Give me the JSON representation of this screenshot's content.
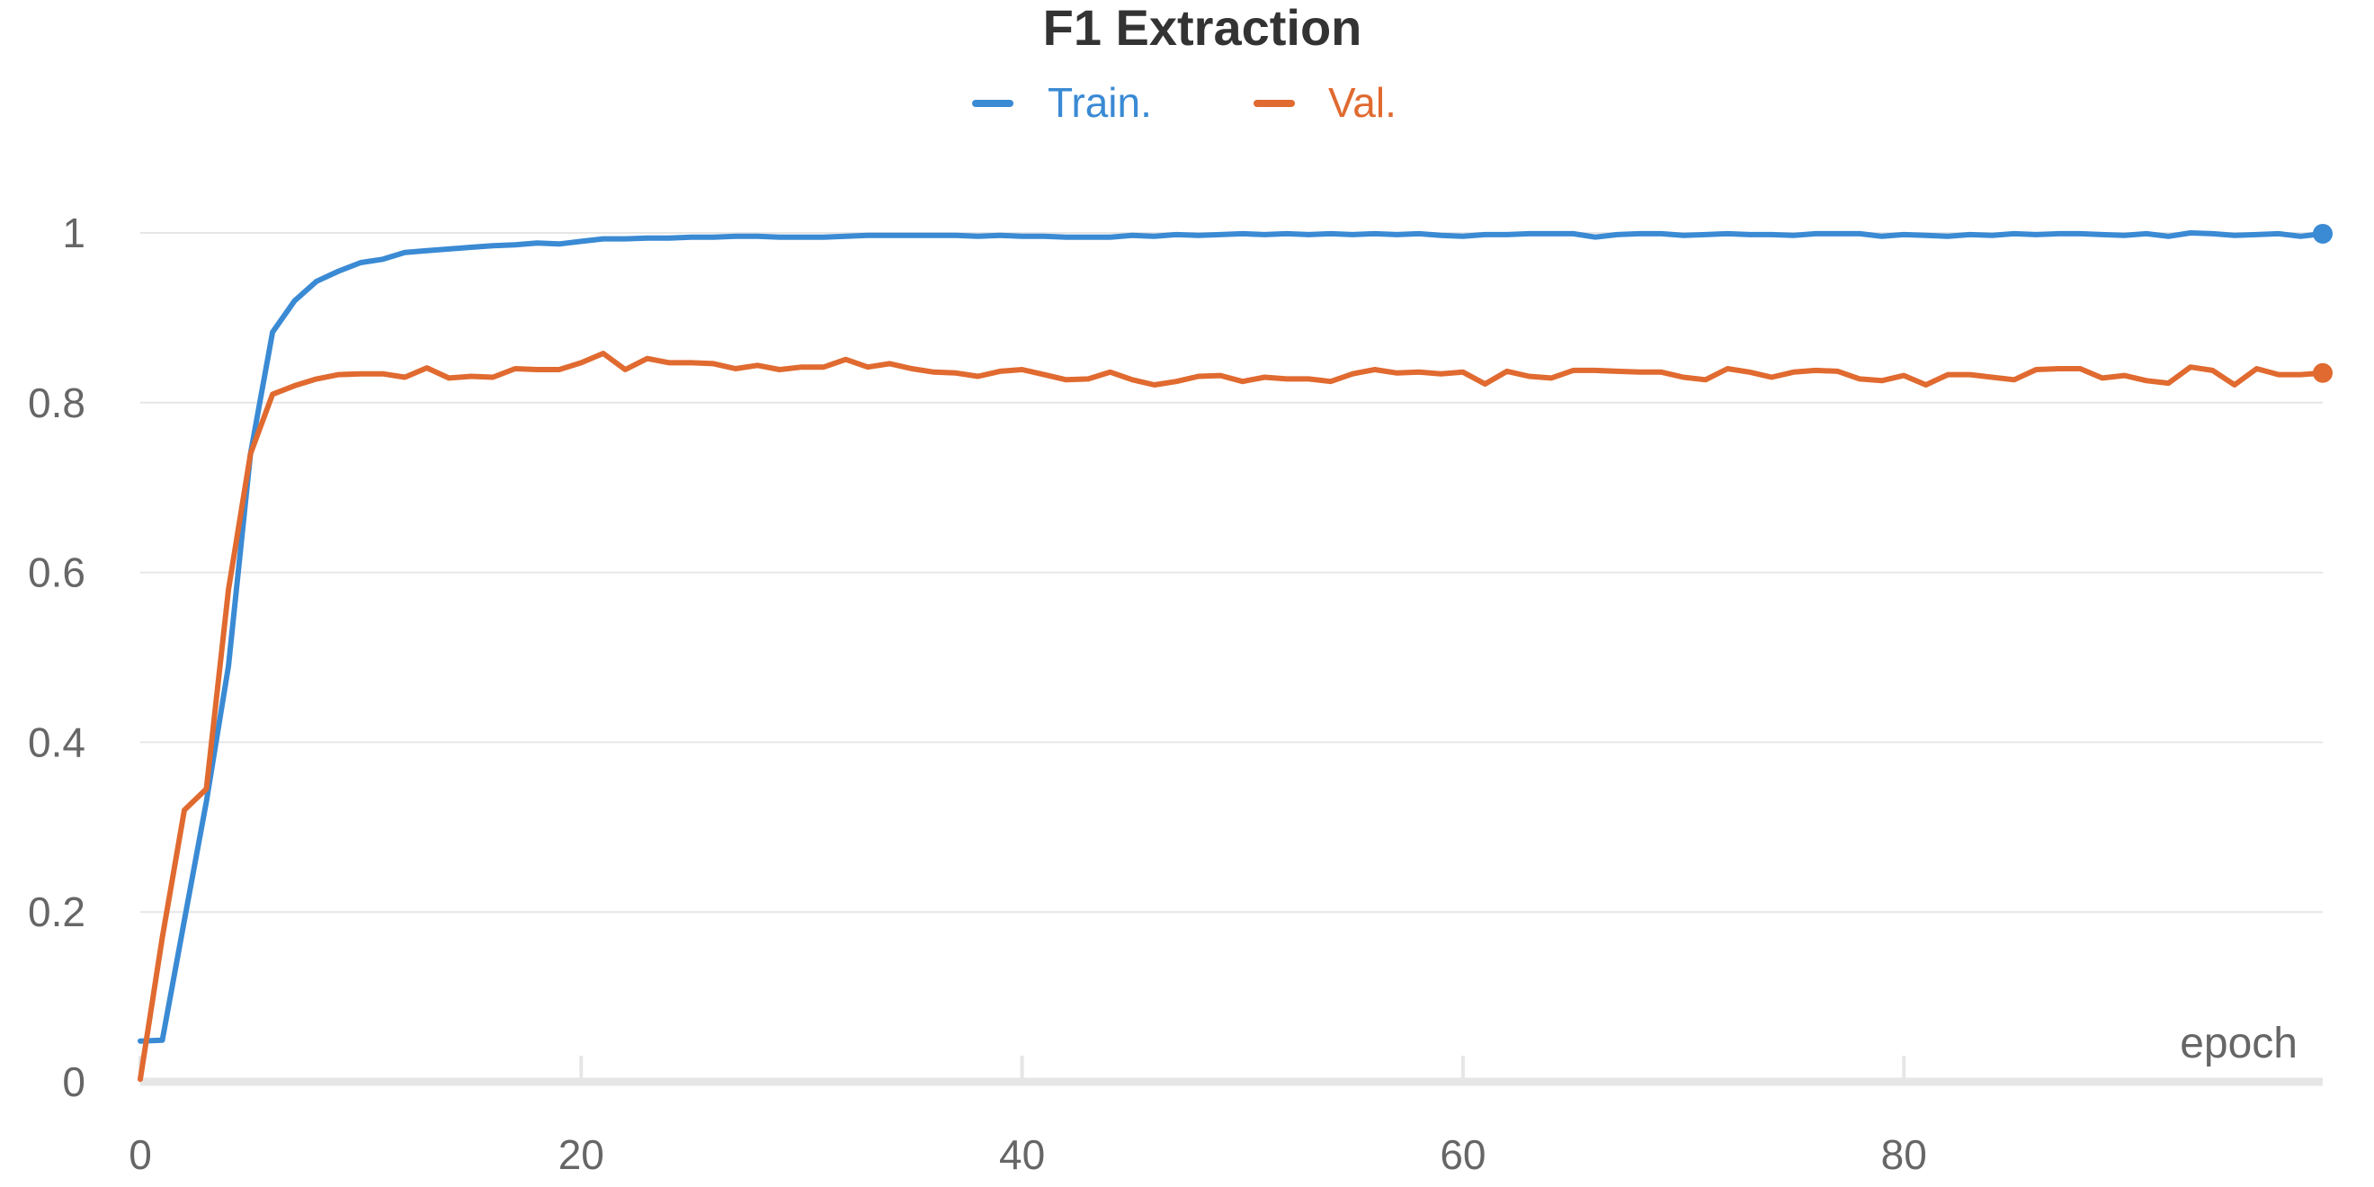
{
  "chart_data": {
    "type": "line",
    "title": "F1 Extraction",
    "xlabel": "epoch",
    "ylabel": "",
    "xlim": [
      0,
      99
    ],
    "ylim": [
      0,
      1
    ],
    "xticks": [
      0,
      20,
      40,
      60,
      80
    ],
    "yticks": [
      0,
      0.2,
      0.4,
      0.6,
      0.8,
      1
    ],
    "ytick_labels": [
      "0",
      "0.2",
      "0.4",
      "0.6",
      "0.8",
      "1"
    ],
    "xtick_labels": [
      "0",
      "20",
      "40",
      "60",
      "80"
    ],
    "grid": true,
    "legend": "top-center",
    "series": [
      {
        "name": "Train.",
        "color": "#3a8ad4",
        "x": [
          0,
          1,
          2,
          3,
          4,
          5,
          6,
          7,
          8,
          9,
          10,
          11,
          12,
          13,
          14,
          15,
          16,
          17,
          18,
          19,
          20,
          21,
          22,
          23,
          24,
          25,
          26,
          27,
          28,
          29,
          30,
          31,
          32,
          33,
          34,
          35,
          36,
          37,
          38,
          39,
          40,
          41,
          42,
          43,
          44,
          45,
          46,
          47,
          48,
          49,
          50,
          51,
          52,
          53,
          54,
          55,
          56,
          57,
          58,
          59,
          60,
          61,
          62,
          63,
          64,
          65,
          66,
          67,
          68,
          69,
          70,
          71,
          72,
          73,
          74,
          75,
          76,
          77,
          78,
          79,
          80,
          81,
          82,
          83,
          84,
          85,
          86,
          87,
          88,
          89,
          90,
          91,
          92,
          93,
          94,
          95,
          96,
          97,
          98,
          99
        ],
        "values": [
          0.048,
          0.049,
          0.19,
          0.33,
          0.49,
          0.74,
          0.883,
          0.92,
          0.943,
          0.955,
          0.965,
          0.969,
          0.977,
          0.979,
          0.981,
          0.983,
          0.985,
          0.986,
          0.988,
          0.987,
          0.99,
          0.993,
          0.993,
          0.994,
          0.994,
          0.995,
          0.995,
          0.996,
          0.996,
          0.995,
          0.995,
          0.995,
          0.996,
          0.997,
          0.997,
          0.997,
          0.997,
          0.997,
          0.996,
          0.997,
          0.996,
          0.996,
          0.995,
          0.995,
          0.995,
          0.997,
          0.996,
          0.998,
          0.997,
          0.998,
          0.999,
          0.998,
          0.999,
          0.998,
          0.999,
          0.998,
          0.999,
          0.998,
          0.999,
          0.997,
          0.996,
          0.998,
          0.998,
          0.999,
          0.999,
          0.999,
          0.995,
          0.998,
          0.999,
          0.999,
          0.997,
          0.998,
          0.999,
          0.998,
          0.998,
          0.997,
          0.999,
          0.999,
          0.999,
          0.996,
          0.998,
          0.997,
          0.996,
          0.998,
          0.997,
          0.999,
          0.998,
          0.999,
          0.999,
          0.998,
          0.997,
          0.999,
          0.996,
          1.0,
          0.999,
          0.997,
          0.998,
          0.999,
          0.996,
          0.999
        ]
      },
      {
        "name": "Val.",
        "color": "#e06a30",
        "x": [
          0,
          1,
          2,
          3,
          4,
          5,
          6,
          7,
          8,
          9,
          10,
          11,
          12,
          13,
          14,
          15,
          16,
          17,
          18,
          19,
          20,
          21,
          22,
          23,
          24,
          25,
          26,
          27,
          28,
          29,
          30,
          31,
          32,
          33,
          34,
          35,
          36,
          37,
          38,
          39,
          40,
          41,
          42,
          43,
          44,
          45,
          46,
          47,
          48,
          49,
          50,
          51,
          52,
          53,
          54,
          55,
          56,
          57,
          58,
          59,
          60,
          61,
          62,
          63,
          64,
          65,
          66,
          67,
          68,
          69,
          70,
          71,
          72,
          73,
          74,
          75,
          76,
          77,
          78,
          79,
          80,
          81,
          82,
          83,
          84,
          85,
          86,
          87,
          88,
          89,
          90,
          91,
          92,
          93,
          94,
          95,
          96,
          97,
          98,
          99
        ],
        "values": [
          0.003,
          0.17,
          0.32,
          0.345,
          0.58,
          0.74,
          0.81,
          0.82,
          0.828,
          0.833,
          0.834,
          0.834,
          0.83,
          0.841,
          0.829,
          0.831,
          0.83,
          0.84,
          0.839,
          0.839,
          0.847,
          0.858,
          0.839,
          0.852,
          0.847,
          0.847,
          0.846,
          0.84,
          0.844,
          0.839,
          0.842,
          0.842,
          0.851,
          0.842,
          0.846,
          0.84,
          0.836,
          0.835,
          0.831,
          0.837,
          0.839,
          0.833,
          0.827,
          0.828,
          0.836,
          0.827,
          0.821,
          0.825,
          0.831,
          0.832,
          0.825,
          0.83,
          0.828,
          0.828,
          0.825,
          0.834,
          0.839,
          0.835,
          0.836,
          0.834,
          0.836,
          0.822,
          0.837,
          0.831,
          0.829,
          0.838,
          0.838,
          0.837,
          0.836,
          0.836,
          0.83,
          0.827,
          0.84,
          0.836,
          0.83,
          0.836,
          0.838,
          0.837,
          0.828,
          0.826,
          0.832,
          0.821,
          0.833,
          0.833,
          0.83,
          0.827,
          0.839,
          0.84,
          0.84,
          0.829,
          0.832,
          0.826,
          0.823,
          0.842,
          0.838,
          0.821,
          0.84,
          0.833,
          0.833,
          0.835
        ]
      }
    ]
  }
}
